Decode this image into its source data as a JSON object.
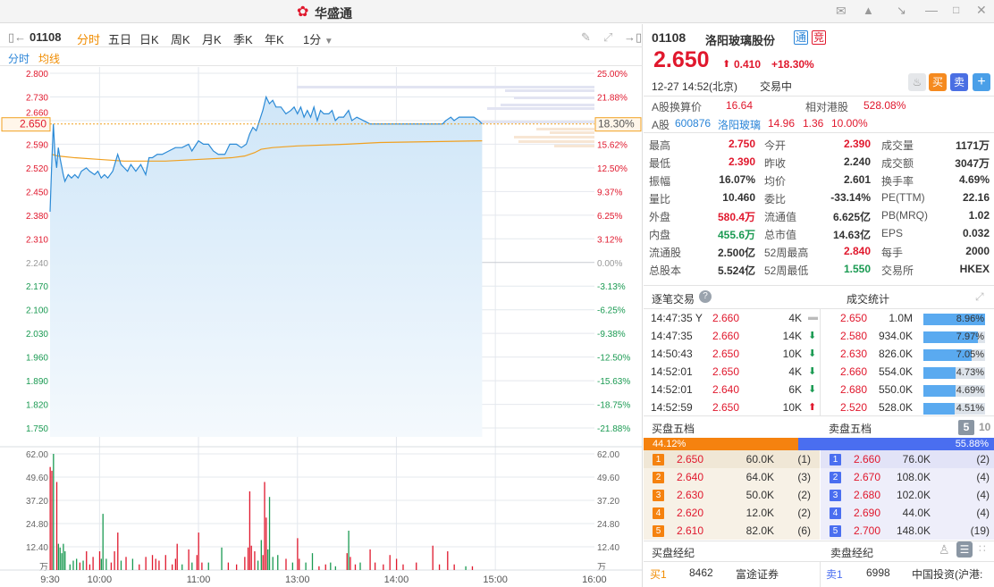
{
  "app": {
    "title": "华盛通",
    "icons": [
      "mail-icon",
      "shirt-icon",
      "shrink-icon",
      "minimize-icon",
      "close-icon"
    ]
  },
  "toolbar": {
    "code": "01108",
    "tabs": [
      "分时",
      "五日",
      "日K",
      "周K",
      "月K",
      "季K",
      "年K"
    ],
    "active_tab": "分时",
    "interval": "1分"
  },
  "legend": {
    "line": "分时",
    "avg": "均线"
  },
  "chart_data": {
    "type": "line",
    "price_ticks": [
      "2.800",
      "2.730",
      "2.660",
      "2.590",
      "2.520",
      "2.450",
      "2.380",
      "2.310",
      "2.240",
      "2.170",
      "2.100",
      "2.030",
      "1.960",
      "1.890",
      "1.820",
      "1.750"
    ],
    "pct_ticks": [
      "25.00%",
      "21.88%",
      "",
      "15.62%",
      "12.50%",
      "9.37%",
      "6.25%",
      "3.12%",
      "0.00%",
      "-3.13%",
      "-6.25%",
      "-9.38%",
      "-12.50%",
      "-15.63%",
      "-18.75%",
      "-21.88%"
    ],
    "current_price": "2.650",
    "current_pct": "18.30%",
    "prev_close": 2.24,
    "time_labels": [
      "9:30",
      "10:00",
      "11:00",
      "13:00",
      "14:00",
      "15:00",
      "16:00"
    ],
    "time_minutes": [
      0,
      30,
      90,
      150,
      210,
      270,
      330
    ],
    "vol_ticks": [
      "62.00",
      "49.60",
      "37.20",
      "24.80",
      "12.40",
      "万"
    ],
    "price": [
      [
        0,
        2.39
      ],
      [
        1,
        2.53
      ],
      [
        2,
        2.65
      ],
      [
        3,
        2.56
      ],
      [
        4,
        2.52
      ],
      [
        5,
        2.58
      ],
      [
        6,
        2.55
      ],
      [
        8,
        2.5
      ],
      [
        9,
        2.48
      ],
      [
        11,
        2.5
      ],
      [
        13,
        2.49
      ],
      [
        15,
        2.5
      ],
      [
        17,
        2.49
      ],
      [
        19,
        2.51
      ],
      [
        22,
        2.52
      ],
      [
        24,
        2.51
      ],
      [
        27,
        2.5
      ],
      [
        29,
        2.51
      ],
      [
        31,
        2.49
      ],
      [
        33,
        2.5
      ],
      [
        35,
        2.49
      ],
      [
        38,
        2.51
      ],
      [
        41,
        2.56
      ],
      [
        43,
        2.53
      ],
      [
        45,
        2.52
      ],
      [
        47,
        2.51
      ],
      [
        49,
        2.53
      ],
      [
        52,
        2.51
      ],
      [
        55,
        2.53
      ],
      [
        58,
        2.5
      ],
      [
        60,
        2.55
      ],
      [
        62,
        2.55
      ],
      [
        65,
        2.56
      ],
      [
        68,
        2.56
      ],
      [
        72,
        2.57
      ],
      [
        76,
        2.58
      ],
      [
        80,
        2.58
      ],
      [
        84,
        2.59
      ],
      [
        86,
        2.57
      ],
      [
        90,
        2.6
      ],
      [
        93,
        2.59
      ],
      [
        96,
        2.59
      ],
      [
        99,
        2.57
      ],
      [
        102,
        2.56
      ],
      [
        106,
        2.56
      ],
      [
        109,
        2.59
      ],
      [
        113,
        2.59
      ],
      [
        116,
        2.58
      ],
      [
        119,
        2.59
      ],
      [
        121,
        2.62
      ],
      [
        123,
        2.64
      ],
      [
        125,
        2.63
      ],
      [
        127,
        2.66
      ],
      [
        129,
        2.69
      ],
      [
        131,
        2.73
      ],
      [
        133,
        2.71
      ],
      [
        135,
        2.72
      ],
      [
        137,
        2.7
      ],
      [
        140,
        2.7
      ],
      [
        143,
        2.68
      ],
      [
        146,
        2.69
      ],
      [
        148,
        2.7
      ],
      [
        150,
        2.68
      ],
      [
        152,
        2.7
      ],
      [
        154,
        2.67
      ],
      [
        156,
        2.69
      ],
      [
        158,
        2.67
      ],
      [
        160,
        2.7
      ],
      [
        162,
        2.66
      ],
      [
        164,
        2.69
      ],
      [
        166,
        2.68
      ],
      [
        169,
        2.68
      ],
      [
        171,
        2.69
      ],
      [
        173,
        2.66
      ],
      [
        175,
        2.67
      ],
      [
        178,
        2.67
      ],
      [
        181,
        2.69
      ],
      [
        183,
        2.66
      ],
      [
        186,
        2.67
      ],
      [
        190,
        2.66
      ],
      [
        194,
        2.65
      ],
      [
        238,
        2.65
      ],
      [
        240,
        2.66
      ],
      [
        243,
        2.67
      ],
      [
        245,
        2.66
      ],
      [
        248,
        2.67
      ],
      [
        257,
        2.67
      ],
      [
        260,
        2.66
      ],
      [
        262,
        2.65
      ]
    ],
    "avg": [
      [
        1,
        2.56
      ],
      [
        5,
        2.555
      ],
      [
        15,
        2.55
      ],
      [
        30,
        2.545
      ],
      [
        45,
        2.54
      ],
      [
        70,
        2.54
      ],
      [
        90,
        2.545
      ],
      [
        110,
        2.55
      ],
      [
        118,
        2.555
      ],
      [
        124,
        2.565
      ],
      [
        128,
        2.575
      ],
      [
        135,
        2.58
      ],
      [
        150,
        2.585
      ],
      [
        180,
        2.59
      ],
      [
        200,
        2.595
      ],
      [
        262,
        2.6
      ]
    ],
    "volume": [
      [
        0,
        55,
        "u"
      ],
      [
        1,
        53,
        "u"
      ],
      [
        2,
        62,
        "d"
      ],
      [
        4,
        47,
        "u"
      ],
      [
        5,
        14,
        "d"
      ],
      [
        6,
        12,
        "d"
      ],
      [
        7,
        9,
        "d"
      ],
      [
        8,
        14,
        "d"
      ],
      [
        9,
        10,
        "d"
      ],
      [
        12,
        3,
        "d"
      ],
      [
        14,
        5,
        "d"
      ],
      [
        16,
        6,
        "d"
      ],
      [
        18,
        4,
        "u"
      ],
      [
        20,
        5,
        "d"
      ],
      [
        22,
        10,
        "u"
      ],
      [
        24,
        3,
        "u"
      ],
      [
        26,
        7,
        "u"
      ],
      [
        30,
        10,
        "u"
      ],
      [
        31,
        6,
        "d"
      ],
      [
        32,
        30,
        "d"
      ],
      [
        34,
        6,
        "d"
      ],
      [
        37,
        4,
        "u"
      ],
      [
        39,
        10,
        "u"
      ],
      [
        41,
        20,
        "u"
      ],
      [
        43,
        5,
        "d"
      ],
      [
        46,
        7,
        "u"
      ],
      [
        50,
        6,
        "d"
      ],
      [
        54,
        3,
        "u"
      ],
      [
        58,
        7,
        "u"
      ],
      [
        62,
        8,
        "u"
      ],
      [
        64,
        6,
        "u"
      ],
      [
        66,
        5,
        "u"
      ],
      [
        70,
        8,
        "u"
      ],
      [
        74,
        3,
        "u"
      ],
      [
        76,
        6,
        "u"
      ],
      [
        77,
        14,
        "u"
      ],
      [
        80,
        3,
        "d"
      ],
      [
        84,
        11,
        "u"
      ],
      [
        86,
        4,
        "d"
      ],
      [
        89,
        8,
        "u"
      ],
      [
        90,
        20,
        "u"
      ],
      [
        92,
        4,
        "u"
      ],
      [
        96,
        4,
        "d"
      ],
      [
        104,
        12,
        "d"
      ],
      [
        108,
        4,
        "u"
      ],
      [
        113,
        3,
        "u"
      ],
      [
        118,
        7,
        "u"
      ],
      [
        120,
        12,
        "u"
      ],
      [
        121,
        42,
        "u"
      ],
      [
        122,
        13,
        "u"
      ],
      [
        124,
        10,
        "u"
      ],
      [
        126,
        5,
        "d"
      ],
      [
        128,
        16,
        "d"
      ],
      [
        129,
        8,
        "u"
      ],
      [
        130,
        47,
        "u"
      ],
      [
        131,
        28,
        "u"
      ],
      [
        132,
        11,
        "d"
      ],
      [
        133,
        39,
        "d"
      ],
      [
        135,
        7,
        "d"
      ],
      [
        138,
        8,
        "d"
      ],
      [
        143,
        6,
        "u"
      ],
      [
        147,
        4,
        "d"
      ],
      [
        150,
        17,
        "u"
      ],
      [
        151,
        6,
        "u"
      ],
      [
        155,
        4,
        "d"
      ],
      [
        159,
        9,
        "d"
      ],
      [
        163,
        2,
        "u"
      ],
      [
        167,
        3,
        "u"
      ],
      [
        170,
        4,
        "d"
      ],
      [
        173,
        2,
        "d"
      ],
      [
        180,
        9,
        "u"
      ],
      [
        181,
        21,
        "d"
      ],
      [
        182,
        7,
        "u"
      ],
      [
        185,
        3,
        "u"
      ],
      [
        188,
        4,
        "d"
      ],
      [
        194,
        11,
        "u"
      ],
      [
        197,
        4,
        "u"
      ],
      [
        202,
        3,
        "u"
      ],
      [
        206,
        8,
        "u"
      ],
      [
        210,
        6,
        "u"
      ],
      [
        214,
        3,
        "u"
      ],
      [
        222,
        4,
        "u"
      ],
      [
        232,
        13,
        "u"
      ],
      [
        236,
        3,
        "u"
      ],
      [
        241,
        10,
        "u"
      ],
      [
        245,
        3,
        "u"
      ],
      [
        252,
        2,
        "d"
      ],
      [
        256,
        2,
        "u"
      ]
    ]
  },
  "quote": {
    "code": "01108",
    "name": "洛阳玻璃股份",
    "tag1": "通",
    "tag2": "竞",
    "price": "2.650",
    "change": "0.410",
    "change_pct": "+18.30%",
    "datetime": "12-27  14:52(北京)",
    "status": "交易中",
    "buy": "买",
    "sell": "卖",
    "add": "+",
    "a_conv_label": "A股换算价",
    "a_conv": "16.64",
    "rel_label": "相对港股",
    "rel": "528.08%",
    "a_label": "A股",
    "a_code": "600876",
    "a_name": "洛阳玻璃",
    "a_price": "14.96",
    "a_chg": "1.36",
    "a_pct": "10.00%"
  },
  "stats": [
    [
      [
        "最高",
        "2.750",
        "red"
      ],
      [
        "今开",
        "2.390",
        "red"
      ],
      [
        "成交量",
        "1171万",
        ""
      ]
    ],
    [
      [
        "最低",
        "2.390",
        "red"
      ],
      [
        "昨收",
        "2.240",
        ""
      ],
      [
        "成交额",
        "3047万",
        ""
      ]
    ],
    [
      [
        "振幅",
        "16.07%",
        ""
      ],
      [
        "均价",
        "2.601",
        ""
      ],
      [
        "换手率",
        "4.69%",
        ""
      ]
    ],
    [
      [
        "量比",
        "10.460",
        ""
      ],
      [
        "委比",
        "-33.14%",
        ""
      ],
      [
        "PE(TTM)",
        "22.16",
        ""
      ]
    ],
    [
      [
        "外盘",
        "580.4万",
        "red"
      ],
      [
        "流通值",
        "6.625亿",
        ""
      ],
      [
        "PB(MRQ)",
        "1.02",
        ""
      ]
    ],
    [
      [
        "内盘",
        "455.6万",
        "green"
      ],
      [
        "总市值",
        "14.63亿",
        ""
      ],
      [
        "EPS",
        "0.032",
        ""
      ]
    ],
    [
      [
        "流通股",
        "2.500亿",
        ""
      ],
      [
        "52周最高",
        "2.840",
        "red"
      ],
      [
        "每手",
        "2000",
        ""
      ]
    ],
    [
      [
        "总股本",
        "5.524亿",
        ""
      ],
      [
        "52周最低",
        "1.550",
        "green"
      ],
      [
        "交易所",
        "HKEX",
        ""
      ]
    ]
  ],
  "trades": {
    "title": "逐笔交易",
    "stats_title": "成交统计",
    "rows": [
      [
        "14:47:35 Y",
        "2.660",
        "4K",
        "flat"
      ],
      [
        "14:47:35",
        "2.660",
        "14K",
        "down"
      ],
      [
        "14:50:43",
        "2.650",
        "10K",
        "down"
      ],
      [
        "14:52:01",
        "2.650",
        "4K",
        "down"
      ],
      [
        "14:52:01",
        "2.640",
        "6K",
        "down"
      ],
      [
        "14:52:59",
        "2.650",
        "10K",
        "up"
      ]
    ],
    "stat_rows": [
      [
        "2.650",
        "1.0M",
        "8.96%",
        8.96
      ],
      [
        "2.580",
        "934.0K",
        "7.97%",
        7.97
      ],
      [
        "2.630",
        "826.0K",
        "7.05%",
        7.05
      ],
      [
        "2.660",
        "554.0K",
        "4.73%",
        4.73
      ],
      [
        "2.680",
        "550.0K",
        "4.69%",
        4.69
      ],
      [
        "2.520",
        "528.0K",
        "4.51%",
        4.51
      ]
    ]
  },
  "book": {
    "buy_title": "买盘五档",
    "sell_title": "卖盘五档",
    "depth5": "5",
    "depth10": "10",
    "buy_pct": "44.12%",
    "sell_pct": "55.88%",
    "buy_ratio": 44.12,
    "bids": [
      [
        "1",
        "2.650",
        "60.0K",
        "(1)"
      ],
      [
        "2",
        "2.640",
        "64.0K",
        "(3)"
      ],
      [
        "3",
        "2.630",
        "50.0K",
        "(2)"
      ],
      [
        "4",
        "2.620",
        "12.0K",
        "(2)"
      ],
      [
        "5",
        "2.610",
        "82.0K",
        "(6)"
      ]
    ],
    "asks": [
      [
        "1",
        "2.660",
        "76.0K",
        "(2)"
      ],
      [
        "2",
        "2.670",
        "108.0K",
        "(4)"
      ],
      [
        "3",
        "2.680",
        "102.0K",
        "(4)"
      ],
      [
        "4",
        "2.690",
        "44.0K",
        "(4)"
      ],
      [
        "5",
        "2.700",
        "148.0K",
        "(19)"
      ]
    ]
  },
  "brokers": {
    "buy_title": "买盘经纪",
    "sell_title": "卖盘经纪",
    "buy": [
      "买1",
      "8462",
      "富途证券"
    ],
    "sell": [
      "卖1",
      "6998",
      "中国投资(沪港:"
    ]
  }
}
